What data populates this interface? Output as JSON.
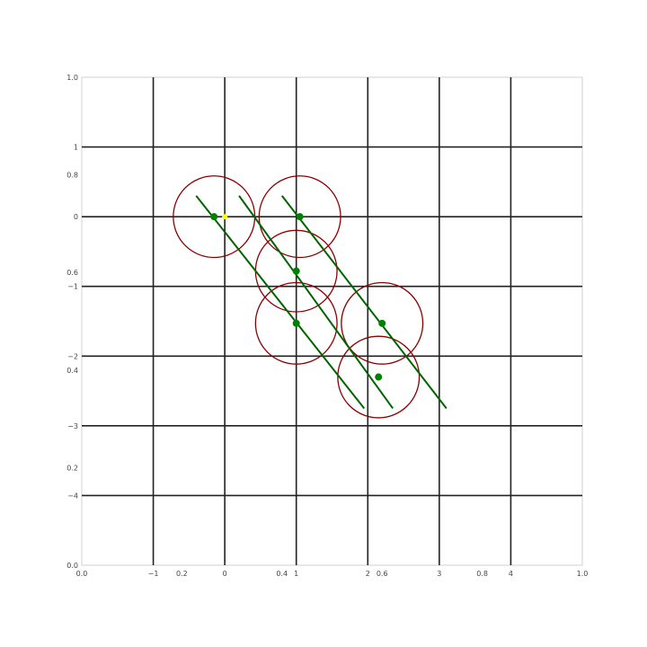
{
  "chart_data": {
    "type": "scatter",
    "grid": true,
    "colors": {
      "grid": "#222222",
      "circle": "#8b0000",
      "line": "#006400",
      "point": "#008000",
      "origin": "#ffff00",
      "frame": "#d0d0d0"
    },
    "outer_axes": {
      "xlim": [
        0.0,
        1.0
      ],
      "ylim": [
        0.0,
        1.0
      ],
      "x_ticks": [
        {
          "value": 0.0,
          "label": "0.0"
        },
        {
          "value": 0.2,
          "label": "0.2"
        },
        {
          "value": 0.4,
          "label": "0.4"
        },
        {
          "value": 0.6,
          "label": "0.6"
        },
        {
          "value": 0.8,
          "label": "0.8"
        },
        {
          "value": 1.0,
          "label": "1.0"
        }
      ],
      "y_ticks": [
        {
          "value": 0.0,
          "label": "0.0"
        },
        {
          "value": 0.2,
          "label": "0.2"
        },
        {
          "value": 0.4,
          "label": "0.4"
        },
        {
          "value": 0.6,
          "label": "0.6"
        },
        {
          "value": 0.8,
          "label": "0.8"
        },
        {
          "value": 1.0,
          "label": "1.0"
        }
      ]
    },
    "inner_axes": {
      "xlim": [
        -2.0,
        5.0
      ],
      "ylim": [
        -5.0,
        2.0
      ],
      "x_ticks": [
        {
          "value": -1,
          "label": "−1"
        },
        {
          "value": 0,
          "label": "0"
        },
        {
          "value": 1,
          "label": "1"
        },
        {
          "value": 2,
          "label": "2"
        },
        {
          "value": 3,
          "label": "3"
        },
        {
          "value": 4,
          "label": "4"
        }
      ],
      "y_ticks": [
        {
          "value": -4,
          "label": "−4"
        },
        {
          "value": -3,
          "label": "−3"
        },
        {
          "value": -2,
          "label": "−2"
        },
        {
          "value": -1,
          "label": "−1"
        },
        {
          "value": 0,
          "label": "0"
        },
        {
          "value": 1,
          "label": "1"
        }
      ]
    },
    "circles": [
      {
        "cx": -0.15,
        "cy": 0.0,
        "r": 0.57
      },
      {
        "cx": 1.05,
        "cy": 0.0,
        "r": 0.57
      },
      {
        "cx": 1.0,
        "cy": -0.78,
        "r": 0.57
      },
      {
        "cx": 1.0,
        "cy": -1.53,
        "r": 0.57
      },
      {
        "cx": 2.2,
        "cy": -1.53,
        "r": 0.57
      },
      {
        "cx": 2.15,
        "cy": -2.3,
        "r": 0.57
      }
    ],
    "lines": [
      {
        "x": [
          -0.4,
          1.95
        ],
        "y": [
          0.3,
          -2.75
        ]
      },
      {
        "x": [
          0.2,
          2.35
        ],
        "y": [
          0.3,
          -2.75
        ]
      },
      {
        "x": [
          0.8,
          3.1
        ],
        "y": [
          0.3,
          -2.75
        ]
      }
    ],
    "points": [
      {
        "x": -0.15,
        "y": 0.0
      },
      {
        "x": 1.05,
        "y": 0.0
      },
      {
        "x": 1.0,
        "y": -0.78
      },
      {
        "x": 1.0,
        "y": -1.53
      },
      {
        "x": 2.2,
        "y": -1.53
      },
      {
        "x": 2.15,
        "y": -2.3
      }
    ],
    "origin_point": {
      "x": 0.0,
      "y": 0.0
    }
  }
}
